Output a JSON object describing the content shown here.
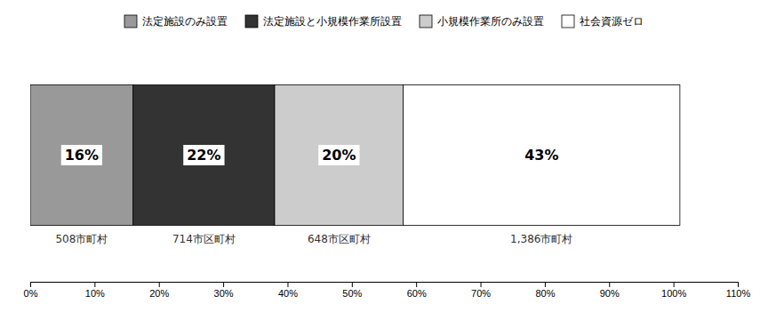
{
  "chart_data": {
    "type": "bar",
    "orientation": "horizontal",
    "stacked": true,
    "categories": [
      null
    ],
    "series": [
      {
        "name": "法定施設のみ設置",
        "color": "#999999",
        "values": [
          16
        ],
        "value_labels": [
          "16%"
        ],
        "annotations": [
          "508市町村"
        ]
      },
      {
        "name": "法定施設と小規模作業所設置",
        "color": "#333333",
        "values": [
          22
        ],
        "value_labels": [
          "22%"
        ],
        "annotations": [
          "714市区町村"
        ]
      },
      {
        "name": "小規模作業所のみ設置",
        "color": "#cccccc",
        "values": [
          20
        ],
        "value_labels": [
          "20%"
        ],
        "annotations": [
          "648市区町村"
        ]
      },
      {
        "name": "社会資源ゼロ",
        "color": "#ffffff",
        "values": [
          43
        ],
        "value_labels": [
          "43%"
        ],
        "annotations": [
          "1,386市町村"
        ]
      }
    ],
    "xlim": [
      0,
      110
    ],
    "xticks": [
      {
        "value": 0,
        "label": "0%"
      },
      {
        "value": 10,
        "label": "10%"
      },
      {
        "value": 20,
        "label": "20%"
      },
      {
        "value": 30,
        "label": "30%"
      },
      {
        "value": 40,
        "label": "40%"
      },
      {
        "value": 50,
        "label": "50%"
      },
      {
        "value": 60,
        "label": "60%"
      },
      {
        "value": 70,
        "label": "70%"
      },
      {
        "value": 80,
        "label": "80%"
      },
      {
        "value": 90,
        "label": "90%"
      },
      {
        "value": 100,
        "label": "100%"
      },
      {
        "value": 110,
        "label": "110%"
      }
    ],
    "data_labels": true,
    "tick_labels": "x",
    "grid": false,
    "legend": "top"
  }
}
